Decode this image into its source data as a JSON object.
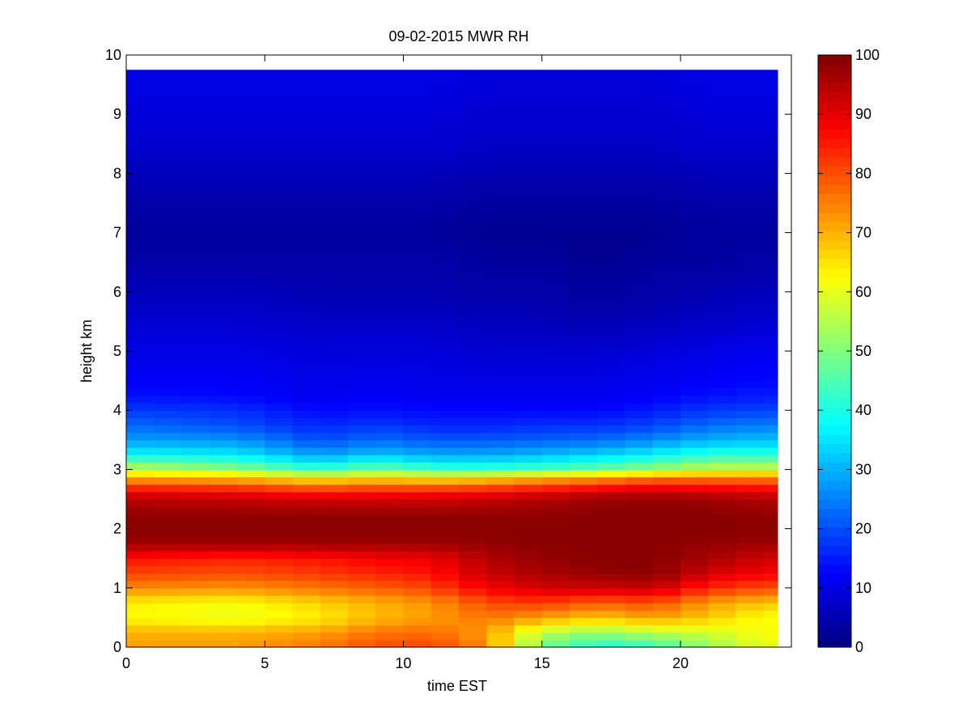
{
  "chart_data": {
    "type": "heatmap",
    "title": "09-02-2015 MWR RH",
    "xlabel": "time EST",
    "ylabel": "height km",
    "xlim": [
      0,
      24
    ],
    "ylim": [
      0,
      10
    ],
    "x_ticks": [
      "0",
      "5",
      "10",
      "15",
      "20"
    ],
    "y_ticks": [
      "0",
      "1",
      "2",
      "3",
      "4",
      "5",
      "6",
      "7",
      "8",
      "9",
      "10"
    ],
    "colorbar": {
      "range": [
        0,
        100
      ],
      "ticks": [
        "0",
        "10",
        "20",
        "30",
        "40",
        "50",
        "60",
        "70",
        "80",
        "90",
        "100"
      ],
      "colormap": "jet"
    },
    "data_extent": {
      "x": [
        0,
        23.5
      ],
      "y": [
        0,
        9.75
      ]
    },
    "times": [
      0,
      1,
      2,
      3,
      4,
      5,
      6,
      7,
      8,
      9,
      10,
      11,
      12,
      13,
      14,
      15,
      16,
      17,
      18,
      19,
      20,
      21,
      22,
      23
    ],
    "profile_heights_km": [
      0,
      0.25,
      0.5,
      0.75,
      1.0,
      1.25,
      1.5,
      1.75,
      2.0,
      2.25,
      2.5,
      2.6,
      2.75,
      2.9,
      3.0,
      3.25,
      3.5,
      3.75,
      4.0,
      4.25,
      4.5,
      5.0,
      5.5,
      6.0,
      6.5,
      7.0,
      7.5,
      8.0,
      8.5,
      9.0,
      9.75
    ],
    "profile_rh": [
      {
        "time": 0,
        "rh": [
          72,
          70,
          63,
          64,
          74,
          81,
          86,
          97,
          99,
          98,
          94,
          90,
          80,
          68,
          58,
          38,
          28,
          23,
          18,
          14,
          12,
          10,
          8,
          6,
          4,
          3,
          4,
          6,
          8,
          9,
          10
        ]
      },
      {
        "time": 4,
        "rh": [
          72,
          70,
          60,
          62,
          73,
          80,
          84,
          97,
          99,
          98,
          93,
          89,
          78,
          66,
          52,
          36,
          27,
          20,
          17,
          13,
          12,
          10,
          8,
          6,
          4,
          3,
          4,
          6,
          8,
          9,
          10
        ]
      },
      {
        "time": 7,
        "rh": [
          76,
          72,
          64,
          67,
          76,
          82,
          86,
          97,
          99,
          98,
          92,
          86,
          74,
          60,
          43,
          28,
          20,
          16,
          13,
          11,
          10,
          9,
          7,
          5,
          4,
          3,
          4,
          6,
          8,
          9,
          10
        ]
      },
      {
        "time": 9,
        "rh": [
          80,
          76,
          69,
          70,
          78,
          84,
          88,
          97,
          99,
          98,
          92,
          87,
          76,
          63,
          49,
          32,
          23,
          18,
          14,
          12,
          11,
          9,
          7,
          5,
          4,
          3,
          4,
          6,
          8,
          9,
          10
        ]
      },
      {
        "time": 11,
        "rh": [
          81,
          77,
          72,
          73,
          81,
          86,
          89,
          97,
          99,
          98,
          92,
          87,
          75,
          61,
          44,
          29,
          21,
          16,
          13,
          11,
          10,
          9,
          7,
          5,
          4,
          3,
          4,
          6,
          8,
          9,
          10
        ]
      },
      {
        "time": 13,
        "rh": [
          74,
          72,
          76,
          80,
          88,
          93,
          95,
          98,
          99,
          98,
          93,
          88,
          77,
          62,
          43,
          29,
          21,
          16,
          13,
          11,
          10,
          8,
          6,
          4,
          3,
          2,
          3,
          5,
          7,
          8,
          9
        ]
      },
      {
        "time": 15,
        "rh": [
          48,
          56,
          72,
          82,
          92,
          96,
          98,
          99,
          99,
          98,
          95,
          90,
          80,
          66,
          45,
          31,
          22,
          17,
          13,
          11,
          10,
          8,
          6,
          4,
          3,
          2,
          3,
          5,
          7,
          8,
          9
        ]
      },
      {
        "time": 17,
        "rh": [
          40,
          52,
          68,
          78,
          92,
          98,
          99,
          99,
          99,
          99,
          97,
          93,
          82,
          68,
          48,
          33,
          23,
          17,
          13,
          11,
          10,
          8,
          5,
          3,
          2,
          2,
          3,
          5,
          7,
          8,
          9
        ]
      },
      {
        "time": 19,
        "rh": [
          42,
          56,
          72,
          80,
          93,
          99,
          99,
          99,
          99,
          99,
          98,
          94,
          85,
          72,
          53,
          37,
          26,
          19,
          15,
          12,
          11,
          9,
          6,
          4,
          3,
          2,
          3,
          5,
          7,
          8,
          9
        ]
      },
      {
        "time": 21,
        "rh": [
          52,
          58,
          68,
          72,
          84,
          92,
          96,
          98,
          99,
          99,
          97,
          93,
          84,
          72,
          58,
          42,
          30,
          23,
          18,
          14,
          12,
          10,
          7,
          5,
          3,
          3,
          4,
          6,
          8,
          9,
          10
        ]
      },
      {
        "time": 23,
        "rh": [
          60,
          62,
          62,
          68,
          80,
          88,
          92,
          97,
          99,
          98,
          95,
          91,
          83,
          72,
          58,
          42,
          31,
          25,
          19,
          15,
          13,
          11,
          8,
          6,
          4,
          3,
          4,
          6,
          8,
          9,
          10
        ]
      }
    ]
  }
}
